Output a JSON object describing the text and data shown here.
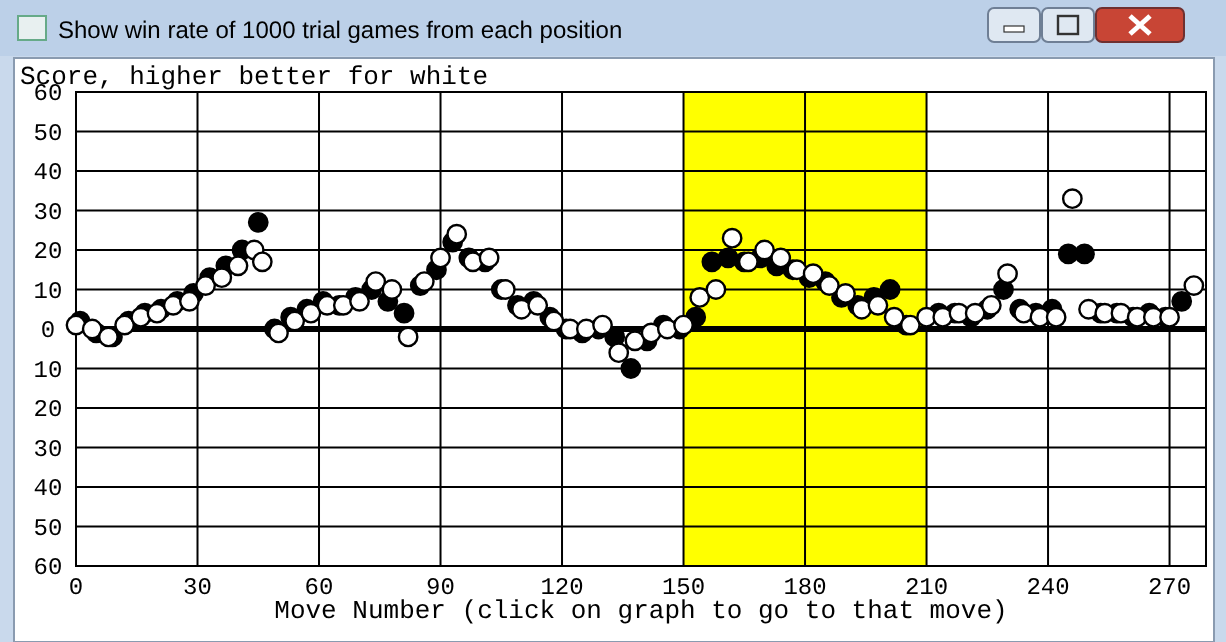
{
  "chart_data": {
    "type": "scatter",
    "title": "Show win rate of 1000 trial games from each position",
    "ylabel": "Score, higher better for white",
    "xlabel": "Move Number (click on graph to go to that move)",
    "xlim": [
      0,
      279
    ],
    "xticks": [
      0,
      30,
      60,
      90,
      120,
      150,
      180,
      210,
      240,
      270
    ],
    "ylim": [
      -60,
      60
    ],
    "yticks": [
      {
        "value": -60,
        "label": "60"
      },
      {
        "value": -50,
        "label": "50"
      },
      {
        "value": -40,
        "label": "40"
      },
      {
        "value": -30,
        "label": "30"
      },
      {
        "value": -20,
        "label": "20"
      },
      {
        "value": -10,
        "label": "10"
      },
      0,
      10,
      20,
      30,
      40,
      50,
      60
    ],
    "grid": true,
    "marker": "circle",
    "bands": [
      {
        "axis": "x",
        "from": 150,
        "to": 210,
        "color": "#ffff00"
      }
    ],
    "ref_lines": [
      {
        "axis": "y",
        "value": 0
      }
    ],
    "series": [
      {
        "color": "#000000",
        "x": [
          1,
          5,
          9,
          13,
          17,
          21,
          25,
          29,
          33,
          37,
          41,
          45,
          49,
          53,
          57,
          61,
          65,
          69,
          73,
          77,
          81,
          85,
          89,
          93,
          97,
          101,
          105,
          109,
          113,
          117,
          121,
          125,
          129,
          133,
          137,
          141,
          145,
          149,
          153,
          157,
          161,
          165,
          169,
          173,
          177,
          181,
          185,
          189,
          193,
          197,
          201,
          205,
          213,
          217,
          221,
          225,
          229,
          233,
          237,
          241,
          245,
          249,
          253,
          257,
          261,
          265,
          269,
          273
        ],
        "values": [
          2,
          -1,
          -2,
          2,
          4,
          5,
          7,
          9,
          13,
          16,
          20,
          27,
          0,
          3,
          5,
          7,
          6,
          8,
          10,
          7,
          4,
          11,
          15,
          22,
          18,
          17,
          10,
          6,
          7,
          3,
          0,
          -1,
          0,
          -2,
          -10,
          -3,
          1,
          0,
          3,
          17,
          18,
          17,
          18,
          16,
          15,
          13,
          12,
          8,
          6,
          8,
          10,
          1,
          4,
          4,
          3,
          5,
          10,
          5,
          4,
          5,
          19,
          19,
          4,
          4,
          3,
          4,
          3,
          7
        ]
      },
      {
        "color": "#ffffff",
        "x": [
          0,
          4,
          8,
          12,
          16,
          20,
          24,
          28,
          32,
          36,
          40,
          44,
          46,
          50,
          54,
          58,
          62,
          66,
          70,
          74,
          78,
          82,
          86,
          90,
          94,
          98,
          102,
          106,
          110,
          114,
          118,
          122,
          126,
          130,
          134,
          138,
          142,
          146,
          150,
          154,
          158,
          162,
          166,
          170,
          174,
          178,
          182,
          186,
          190,
          194,
          198,
          202,
          206,
          210,
          214,
          218,
          222,
          226,
          230,
          234,
          238,
          242,
          246,
          250,
          254,
          258,
          262,
          266,
          270,
          276
        ],
        "values": [
          1,
          0,
          -2,
          1,
          3,
          4,
          6,
          7,
          11,
          13,
          16,
          20,
          17,
          -1,
          2,
          4,
          6,
          6,
          7,
          12,
          10,
          -2,
          12,
          18,
          24,
          17,
          18,
          10,
          5,
          6,
          2,
          0,
          0,
          1,
          -6,
          -3,
          -1,
          0,
          1,
          8,
          10,
          23,
          17,
          20,
          18,
          15,
          14,
          11,
          9,
          5,
          6,
          3,
          1,
          3,
          3,
          4,
          4,
          6,
          14,
          4,
          3,
          3,
          33,
          5,
          4,
          4,
          3,
          3,
          3,
          11
        ]
      }
    ]
  }
}
